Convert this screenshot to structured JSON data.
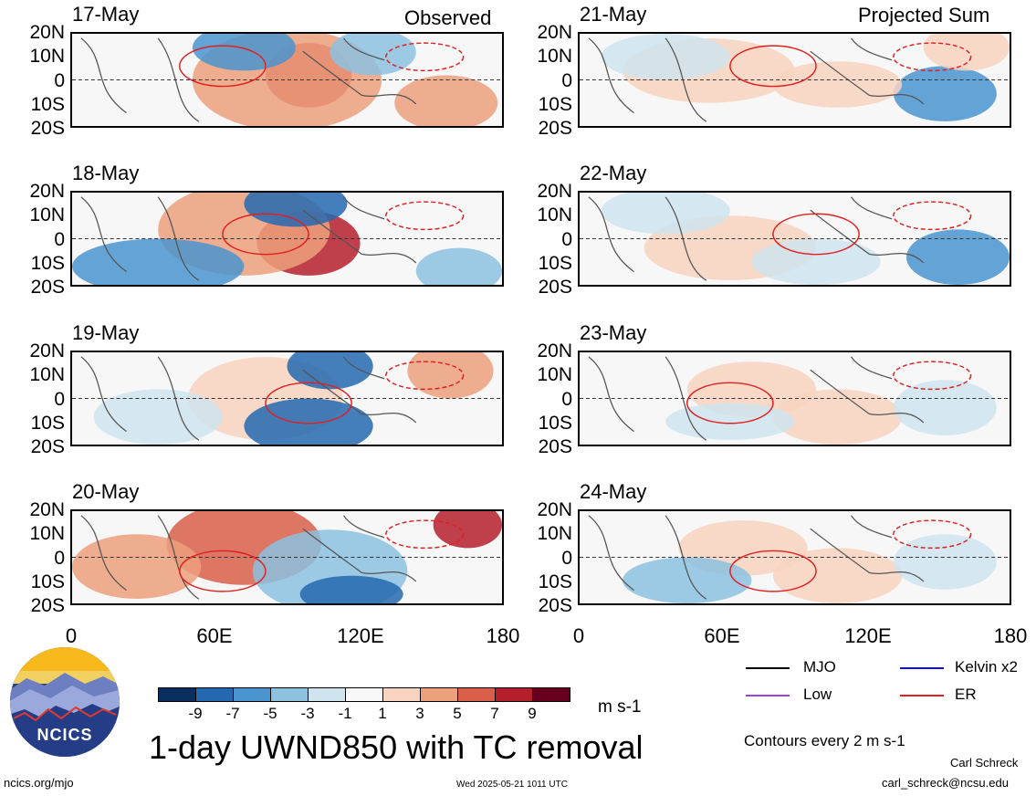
{
  "header": {
    "left": "Observed",
    "right": "Projected Sum"
  },
  "y_ticks": [
    "20N",
    "10N",
    "0",
    "10S",
    "20S"
  ],
  "x_ticks": [
    "0",
    "60E",
    "120E",
    "180"
  ],
  "observed_panels": [
    {
      "date": "17-May"
    },
    {
      "date": "18-May"
    },
    {
      "date": "19-May"
    },
    {
      "date": "20-May"
    }
  ],
  "projected_panels": [
    {
      "date": "21-May"
    },
    {
      "date": "22-May"
    },
    {
      "date": "23-May"
    },
    {
      "date": "24-May"
    }
  ],
  "colorbar": {
    "levels": [
      "-9",
      "-7",
      "-5",
      "-3",
      "-1",
      "1",
      "3",
      "5",
      "7",
      "9"
    ],
    "colors": [
      "#0a2f5e",
      "#2468b0",
      "#4a94cf",
      "#8cc1e0",
      "#cfe4ef",
      "#f8f8f8",
      "#f8d3c0",
      "#eda07c",
      "#d95f4a",
      "#b51f2b",
      "#67001f"
    ],
    "units": "m s-1"
  },
  "legend": {
    "items": [
      {
        "label": "MJO",
        "color": "#000000"
      },
      {
        "label": "Kelvin x2",
        "color": "#1010e0"
      },
      {
        "label": "Low",
        "color": "#a040e0"
      },
      {
        "label": "ER",
        "color": "#e02020"
      }
    ],
    "contour_note": "Contours every 2 m s-1"
  },
  "logo": {
    "text": "NCICS"
  },
  "title": "1-day UWND850 with TC removal",
  "footer": {
    "url": "ncics.org/mjo",
    "timestamp": "Wed 2025-05-21 1011 UTC",
    "author": "Carl Schreck",
    "email": "carl_schreck@ncsu.edu"
  },
  "chart_data": {
    "type": "heatmap",
    "variable": "UWND850 anomaly",
    "x_range": [
      0,
      180
    ],
    "y_range": [
      -20,
      20
    ],
    "panels": [
      "17-May",
      "18-May",
      "19-May",
      "20-May",
      "21-May",
      "22-May",
      "23-May",
      "24-May"
    ]
  }
}
